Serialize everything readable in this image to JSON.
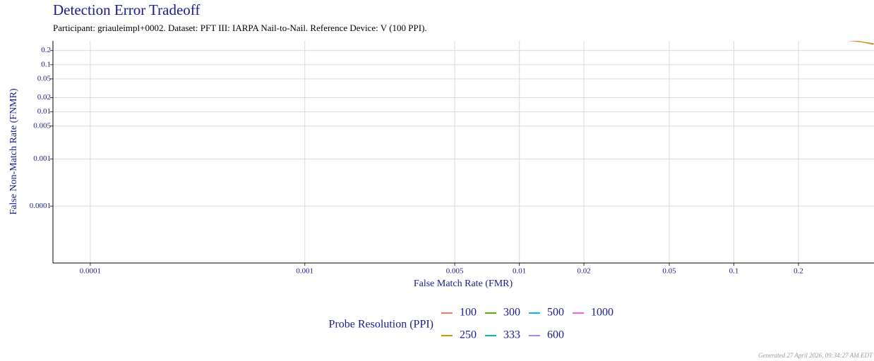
{
  "chart_data": {
    "type": "line",
    "title": "Detection Error Tradeoff",
    "subtitle": "Participant: griauleimpl+0002. Dataset: PFT III: IARPA Nail-to-Nail. Reference Device: V (100 PPI).",
    "x_label": "False Match Rate (FMR)",
    "y_label": "False Non-Match Rate (FNMR)",
    "legend_title": "Probe Resolution (PPI)",
    "footer": "Generated 27 April 2026, 09:34:27 AM EDT",
    "xlog": true,
    "ylog": true,
    "grid": true,
    "legend_position": "bottom",
    "xlim": [
      6.7e-05,
      0.45
    ],
    "ylim": [
      6.2e-06,
      0.32
    ],
    "xticks": [
      0.0001,
      0.001,
      0.005,
      0.01,
      0.02,
      0.05,
      0.1,
      0.2
    ],
    "yticks": [
      0.0001,
      0.001,
      0.005,
      0.01,
      0.02,
      0.05,
      0.1,
      0.2
    ],
    "series": [
      {
        "name": "100",
        "color": "#F8766D",
        "x": [
          0.33,
          0.38,
          0.448
        ],
        "values": [
          0.33,
          0.31,
          0.28
        ]
      },
      {
        "name": "250",
        "color": "#C49A00",
        "x": [
          0.36,
          0.448
        ],
        "values": [
          0.33,
          0.27
        ]
      },
      {
        "name": "300",
        "color": "#53B400",
        "x": [],
        "values": []
      },
      {
        "name": "333",
        "color": "#00C094",
        "x": [],
        "values": []
      },
      {
        "name": "500",
        "color": "#00B6EB",
        "x": [],
        "values": []
      },
      {
        "name": "600",
        "color": "#A58AFF",
        "x": [],
        "values": []
      },
      {
        "name": "1000",
        "color": "#FB61D7",
        "x": [],
        "values": []
      }
    ]
  }
}
